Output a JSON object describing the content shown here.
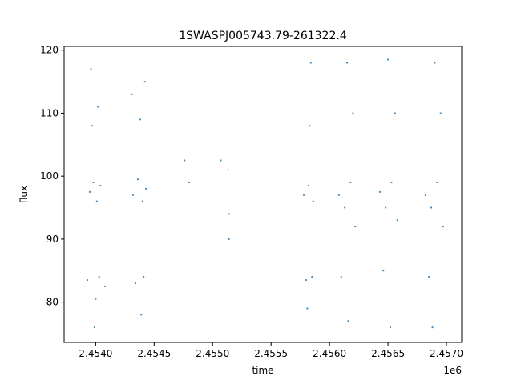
{
  "chart_data": {
    "type": "scatter",
    "title": "1SWASPJ005743.79-261322.4",
    "xlabel": "time",
    "ylabel": "flux",
    "x_offset_label": "1e6",
    "xlim": [
      2.45373,
      2.45713
    ],
    "ylim": [
      73.6,
      120.6
    ],
    "xticks": [
      2.454,
      2.4545,
      2.455,
      2.4555,
      2.456,
      2.4565,
      2.457
    ],
    "xtick_labels": [
      "2.4540",
      "2.4545",
      "2.4550",
      "2.4555",
      "2.4560",
      "2.4565",
      "2.4570"
    ],
    "yticks": [
      80,
      90,
      100,
      110,
      120
    ],
    "ytick_labels": [
      "80",
      "90",
      "100",
      "110",
      "120"
    ],
    "grid": false,
    "marker_color": "#1f77b4",
    "series": [
      {
        "points": [
          {
            "x": 2.45395,
            "y": 97.5
          },
          {
            "x": 2.45398,
            "y": 99.0
          },
          {
            "x": 2.45401,
            "y": 96.0
          },
          {
            "x": 2.45404,
            "y": 98.5
          },
          {
            "x": 2.45393,
            "y": 83.5
          },
          {
            "x": 2.45403,
            "y": 84.0
          },
          {
            "x": 2.45397,
            "y": 108.0
          },
          {
            "x": 2.45402,
            "y": 111.0
          },
          {
            "x": 2.45408,
            "y": 82.5
          },
          {
            "x": 2.454,
            "y": 80.5
          },
          {
            "x": 2.45399,
            "y": 76.0
          },
          {
            "x": 2.45396,
            "y": 117.0
          },
          {
            "x": 2.45432,
            "y": 97.0
          },
          {
            "x": 2.45436,
            "y": 99.5
          },
          {
            "x": 2.4544,
            "y": 96.0
          },
          {
            "x": 2.45443,
            "y": 98.0
          },
          {
            "x": 2.45434,
            "y": 83.0
          },
          {
            "x": 2.45441,
            "y": 84.0
          },
          {
            "x": 2.45438,
            "y": 109.0
          },
          {
            "x": 2.45442,
            "y": 115.0
          },
          {
            "x": 2.45439,
            "y": 78.0
          },
          {
            "x": 2.45431,
            "y": 113.0
          },
          {
            "x": 2.45476,
            "y": 102.5
          },
          {
            "x": 2.4548,
            "y": 99.0
          },
          {
            "x": 2.45507,
            "y": 102.5
          },
          {
            "x": 2.45513,
            "y": 101.0
          },
          {
            "x": 2.45514,
            "y": 90.0
          },
          {
            "x": 2.45514,
            "y": 94.0
          },
          {
            "x": 2.45578,
            "y": 97.0
          },
          {
            "x": 2.45582,
            "y": 98.5
          },
          {
            "x": 2.45586,
            "y": 96.0
          },
          {
            "x": 2.4558,
            "y": 83.5
          },
          {
            "x": 2.45585,
            "y": 84.0
          },
          {
            "x": 2.45583,
            "y": 108.0
          },
          {
            "x": 2.45584,
            "y": 118.0
          },
          {
            "x": 2.45581,
            "y": 79.0
          },
          {
            "x": 2.45608,
            "y": 97.0
          },
          {
            "x": 2.45613,
            "y": 95.0
          },
          {
            "x": 2.45618,
            "y": 99.0
          },
          {
            "x": 2.45622,
            "y": 92.0
          },
          {
            "x": 2.4561,
            "y": 84.0
          },
          {
            "x": 2.4562,
            "y": 110.0
          },
          {
            "x": 2.45615,
            "y": 118.0
          },
          {
            "x": 2.45616,
            "y": 77.0
          },
          {
            "x": 2.45643,
            "y": 97.5
          },
          {
            "x": 2.45648,
            "y": 95.0
          },
          {
            "x": 2.45653,
            "y": 99.0
          },
          {
            "x": 2.45658,
            "y": 93.0
          },
          {
            "x": 2.45646,
            "y": 85.0
          },
          {
            "x": 2.45656,
            "y": 110.0
          },
          {
            "x": 2.4565,
            "y": 118.5
          },
          {
            "x": 2.45652,
            "y": 76.0
          },
          {
            "x": 2.45682,
            "y": 97.0
          },
          {
            "x": 2.45687,
            "y": 95.0
          },
          {
            "x": 2.45692,
            "y": 99.0
          },
          {
            "x": 2.45697,
            "y": 92.0
          },
          {
            "x": 2.45685,
            "y": 84.0
          },
          {
            "x": 2.45695,
            "y": 110.0
          },
          {
            "x": 2.4569,
            "y": 118.0
          },
          {
            "x": 2.45688,
            "y": 76.0
          }
        ]
      }
    ]
  }
}
